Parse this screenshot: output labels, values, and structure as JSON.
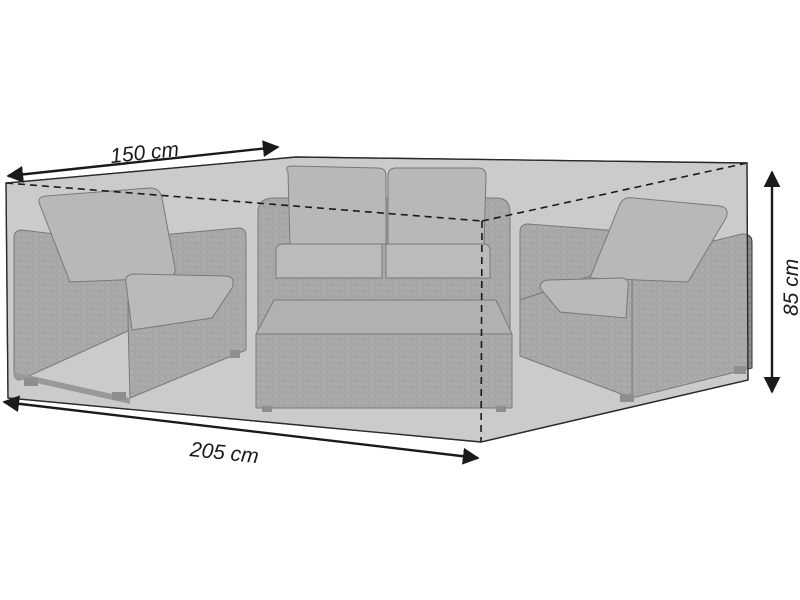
{
  "product": {
    "depth_label": "150 cm",
    "width_label": "205 cm",
    "height_label": "85 cm"
  },
  "colors": {
    "cover": "#c6c6c6",
    "furniture_wicker": "#8e8e8e",
    "cushions": "#a9a9a9",
    "outline": "#2b2b2b",
    "dimension_lines": "#1a1a1a"
  }
}
